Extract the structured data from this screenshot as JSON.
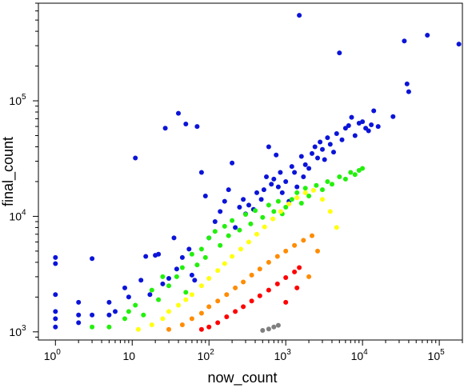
{
  "chart_data": {
    "type": "scatter",
    "title": "",
    "xlabel": "now_count",
    "ylabel": "final_count",
    "x_scale": "log",
    "y_scale": "log",
    "xlim": [
      0.6,
      200000
    ],
    "ylim": [
      850,
      700000
    ],
    "x_ticks": [
      {
        "base": "10",
        "exp": "0"
      },
      {
        "base": "10",
        "exp": ""
      },
      {
        "base": "10",
        "exp": "2"
      },
      {
        "base": "10",
        "exp": "3"
      },
      {
        "base": "10",
        "exp": "4"
      },
      {
        "base": "10",
        "exp": "5"
      }
    ],
    "x_tick_values": [
      1,
      10,
      100,
      1000,
      10000,
      100000
    ],
    "y_ticks": [
      {
        "base": "10",
        "exp": "3"
      },
      {
        "base": "10",
        "exp": "4"
      },
      {
        "base": "10",
        "exp": "5"
      }
    ],
    "y_tick_values": [
      1000,
      10000,
      100000
    ],
    "grid": false,
    "colors": {
      "blue": "#0b14d8",
      "green": "#22f00c",
      "yellow": "#ffff10",
      "orange": "#ff8c00",
      "red": "#ff0000",
      "gray": "#7f7f7f"
    },
    "series": [
      {
        "color": "#0b14d8",
        "points": [
          [
            1,
            4400
          ],
          [
            1,
            3900
          ],
          [
            1,
            2100
          ],
          [
            1,
            1500
          ],
          [
            1,
            1300
          ],
          [
            1,
            1100
          ],
          [
            2,
            1800
          ],
          [
            2,
            1400
          ],
          [
            2,
            1200
          ],
          [
            3,
            4300
          ],
          [
            3,
            1400
          ],
          [
            5,
            1800
          ],
          [
            5,
            1400
          ],
          [
            6,
            1500
          ],
          [
            8,
            2400
          ],
          [
            9,
            2000
          ],
          [
            11,
            32000
          ],
          [
            13,
            2800
          ],
          [
            15,
            4500
          ],
          [
            17,
            2100
          ],
          [
            20,
            4600
          ],
          [
            22,
            4700
          ],
          [
            25,
            2600
          ],
          [
            27,
            58000
          ],
          [
            30,
            2900
          ],
          [
            35,
            6500
          ],
          [
            38,
            3500
          ],
          [
            40,
            78000
          ],
          [
            45,
            4400
          ],
          [
            50,
            63000
          ],
          [
            55,
            5200
          ],
          [
            60,
            3100
          ],
          [
            65,
            2800
          ],
          [
            70,
            60000
          ],
          [
            80,
            24000
          ],
          [
            90,
            15000
          ],
          [
            100,
            6500
          ],
          [
            120,
            9000
          ],
          [
            140,
            11000
          ],
          [
            160,
            13500
          ],
          [
            180,
            17000
          ],
          [
            200,
            29000
          ],
          [
            220,
            8000
          ],
          [
            250,
            12000
          ],
          [
            280,
            14000
          ],
          [
            300,
            10500
          ],
          [
            330,
            12500
          ],
          [
            380,
            11500
          ],
          [
            420,
            16000
          ],
          [
            480,
            14000
          ],
          [
            520,
            17000
          ],
          [
            560,
            22000
          ],
          [
            600,
            40000
          ],
          [
            650,
            19000
          ],
          [
            700,
            21000
          ],
          [
            750,
            34000
          ],
          [
            800,
            18000
          ],
          [
            850,
            24000
          ],
          [
            900,
            16000
          ],
          [
            1000,
            20000
          ],
          [
            1100,
            13500
          ],
          [
            1200,
            27000
          ],
          [
            1300,
            24000
          ],
          [
            1400,
            18000
          ],
          [
            1500,
            550000
          ],
          [
            1600,
            33000
          ],
          [
            1700,
            22000
          ],
          [
            1800,
            28000
          ],
          [
            2000,
            26000
          ],
          [
            2200,
            35000
          ],
          [
            2400,
            40000
          ],
          [
            2600,
            32000
          ],
          [
            2800,
            44000
          ],
          [
            3000,
            38000
          ],
          [
            3200,
            31000
          ],
          [
            3500,
            48000
          ],
          [
            3800,
            42000
          ],
          [
            4200,
            36000
          ],
          [
            4600,
            52000
          ],
          [
            5000,
            260000
          ],
          [
            5400,
            46000
          ],
          [
            6000,
            58000
          ],
          [
            6600,
            61000
          ],
          [
            7200,
            72000
          ],
          [
            8000,
            50000
          ],
          [
            9000,
            64000
          ],
          [
            10000,
            66000
          ],
          [
            11000,
            58000
          ],
          [
            12000,
            55000
          ],
          [
            13000,
            62000
          ],
          [
            14000,
            82000
          ],
          [
            16000,
            60000
          ],
          [
            25000,
            73000
          ],
          [
            35000,
            330000
          ],
          [
            38000,
            140000
          ],
          [
            40000,
            120000
          ],
          [
            70000,
            370000
          ],
          [
            180000,
            310000
          ]
        ]
      },
      {
        "color": "#22f00c",
        "points": [
          [
            3,
            1100
          ],
          [
            5,
            1100
          ],
          [
            8,
            1300
          ],
          [
            9,
            1500
          ],
          [
            11,
            1700
          ],
          [
            14,
            1400
          ],
          [
            18,
            2300
          ],
          [
            22,
            1900
          ],
          [
            25,
            3000
          ],
          [
            30,
            2500
          ],
          [
            38,
            3000
          ],
          [
            45,
            3600
          ],
          [
            50,
            2200
          ],
          [
            60,
            4700
          ],
          [
            70,
            3800
          ],
          [
            80,
            5200
          ],
          [
            90,
            4400
          ],
          [
            100,
            6500
          ],
          [
            120,
            7400
          ],
          [
            140,
            5600
          ],
          [
            160,
            8200
          ],
          [
            180,
            6800
          ],
          [
            200,
            9200
          ],
          [
            250,
            7600
          ],
          [
            300,
            10400
          ],
          [
            350,
            8600
          ],
          [
            400,
            11200
          ],
          [
            500,
            9800
          ],
          [
            600,
            12500
          ],
          [
            700,
            11000
          ],
          [
            800,
            13500
          ],
          [
            900,
            10500
          ],
          [
            1000,
            12000
          ],
          [
            1200,
            14000
          ],
          [
            1400,
            16000
          ],
          [
            1600,
            13000
          ],
          [
            1800,
            17500
          ],
          [
            2000,
            15000
          ],
          [
            2500,
            18500
          ],
          [
            3000,
            17000
          ],
          [
            3500,
            20000
          ],
          [
            4000,
            19000
          ],
          [
            5000,
            22000
          ],
          [
            6000,
            21000
          ],
          [
            7000,
            24000
          ],
          [
            8000,
            23000
          ],
          [
            9000,
            25000
          ],
          [
            10000,
            26000
          ]
        ]
      },
      {
        "color": "#ffff10",
        "points": [
          [
            12,
            1050
          ],
          [
            18,
            1150
          ],
          [
            25,
            1300
          ],
          [
            30,
            1500
          ],
          [
            40,
            1700
          ],
          [
            50,
            1900
          ],
          [
            60,
            2100
          ],
          [
            80,
            2500
          ],
          [
            100,
            2900
          ],
          [
            130,
            3400
          ],
          [
            160,
            3900
          ],
          [
            200,
            4500
          ],
          [
            260,
            5200
          ],
          [
            330,
            6000
          ],
          [
            420,
            7000
          ],
          [
            530,
            8100
          ],
          [
            680,
            9500
          ],
          [
            860,
            11000
          ],
          [
            1100,
            12800
          ],
          [
            1400,
            14500
          ],
          [
            1800,
            16000
          ],
          [
            2300,
            16800
          ],
          [
            3000,
            14000
          ],
          [
            3800,
            11000
          ],
          [
            4600,
            8000
          ]
        ]
      },
      {
        "color": "#ff8c00",
        "points": [
          [
            30,
            1050
          ],
          [
            45,
            1150
          ],
          [
            60,
            1300
          ],
          [
            80,
            1450
          ],
          [
            100,
            1650
          ],
          [
            130,
            1850
          ],
          [
            170,
            2100
          ],
          [
            220,
            2400
          ],
          [
            280,
            2700
          ],
          [
            360,
            3100
          ],
          [
            460,
            3500
          ],
          [
            600,
            4000
          ],
          [
            780,
            4500
          ],
          [
            1000,
            5000
          ],
          [
            1300,
            5600
          ],
          [
            1700,
            6200
          ],
          [
            2200,
            6800
          ],
          [
            2600,
            5000
          ],
          [
            2000,
            3000
          ]
        ]
      },
      {
        "color": "#ff0000",
        "points": [
          [
            80,
            1050
          ],
          [
            100,
            1100
          ],
          [
            130,
            1200
          ],
          [
            170,
            1350
          ],
          [
            220,
            1500
          ],
          [
            280,
            1650
          ],
          [
            360,
            1850
          ],
          [
            460,
            2050
          ],
          [
            600,
            2300
          ],
          [
            780,
            2600
          ],
          [
            1000,
            2950
          ],
          [
            1300,
            3300
          ],
          [
            1500,
            3600
          ],
          [
            1400,
            2400
          ],
          [
            1000,
            1800
          ]
        ]
      },
      {
        "color": "#7f7f7f",
        "points": [
          [
            500,
            1030
          ],
          [
            600,
            1060
          ],
          [
            700,
            1100
          ],
          [
            800,
            1140
          ]
        ]
      }
    ]
  }
}
